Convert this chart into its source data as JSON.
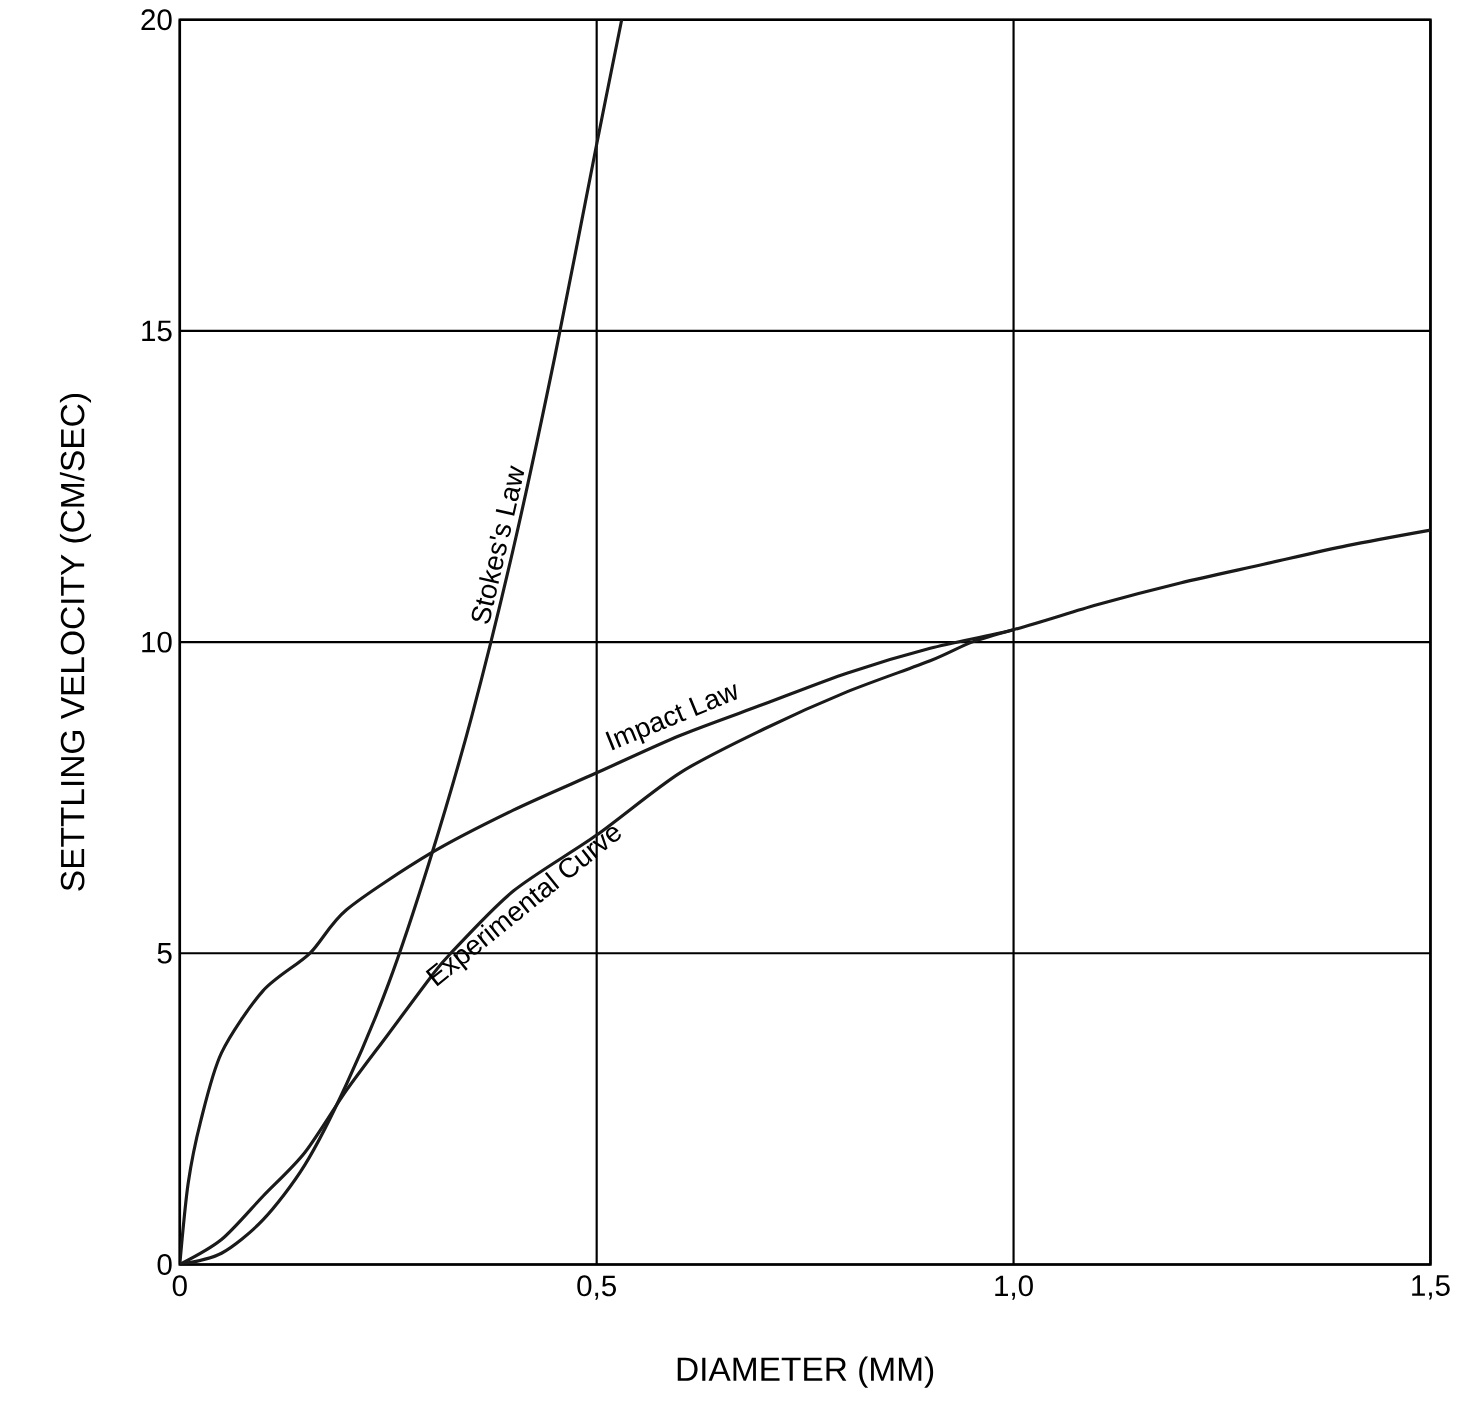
{
  "chart_data": {
    "type": "line",
    "xlabel": "DIAMETER (MM)",
    "ylabel": "SETTLING VELOCITY (CM/SEC)",
    "xlim": [
      0,
      1.5
    ],
    "ylim": [
      0,
      20
    ],
    "xticks": [
      0,
      {
        "value": 0.5,
        "label": "0,5"
      },
      {
        "value": 1.0,
        "label": "1,0"
      },
      {
        "value": 1.5,
        "label": "1,5"
      }
    ],
    "yticks": [
      0,
      5,
      10,
      15,
      20
    ],
    "grid": true,
    "marker": "none",
    "line_style": "solid",
    "series": [
      {
        "name": "Stokes's Law",
        "color": "#1a1a1a",
        "x": [
          0,
          0.05,
          0.1,
          0.15,
          0.2,
          0.25,
          0.3,
          0.35,
          0.4,
          0.45,
          0.5,
          0.53
        ],
        "values": [
          0,
          0.18,
          0.72,
          1.6,
          2.9,
          4.5,
          6.5,
          8.8,
          11.5,
          14.6,
          18,
          20
        ]
      },
      {
        "name": "Impact Law",
        "color": "#1a1a1a",
        "x": [
          0,
          0.01,
          0.025,
          0.05,
          0.1,
          0.156,
          0.2,
          0.3,
          0.4,
          0.5,
          0.6,
          0.7,
          0.8,
          0.9,
          1.0,
          1.1,
          1.2,
          1.3,
          1.4,
          1.5
        ],
        "values": [
          0,
          1.3,
          2.3,
          3.4,
          4.4,
          5,
          5.7,
          6.6,
          7.3,
          7.9,
          8.5,
          9.0,
          9.5,
          9.9,
          10.2,
          10.6,
          10.95,
          11.25,
          11.55,
          11.8
        ]
      },
      {
        "name": "Experimental Curve",
        "color": "#1a1a1a",
        "x": [
          0,
          0.05,
          0.1,
          0.15,
          0.2,
          0.25,
          0.3,
          0.325,
          0.4,
          0.5,
          0.6,
          0.7,
          0.8,
          0.9,
          0.95,
          1.0
        ],
        "values": [
          0,
          0.4,
          1.1,
          1.8,
          2.8,
          3.7,
          4.6,
          5.0,
          6.0,
          6.9,
          7.9,
          8.6,
          9.2,
          9.7,
          10.0,
          10.2
        ]
      }
    ]
  }
}
